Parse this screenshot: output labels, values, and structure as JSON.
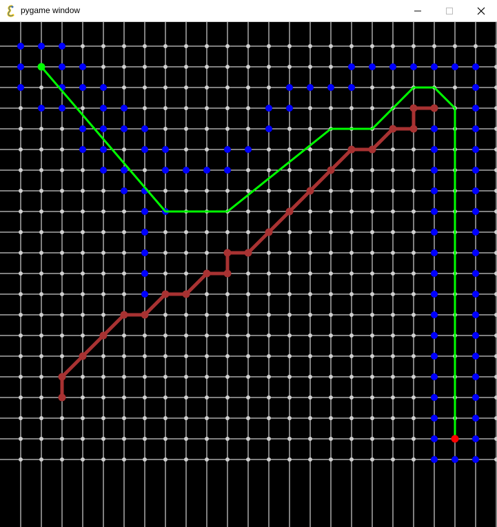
{
  "window": {
    "title": "pygame window",
    "icon": "pygame-snake-icon",
    "controls": [
      "minimize-icon",
      "maximize-icon",
      "close-icon"
    ]
  },
  "game": {
    "grid_cols": 24,
    "grid_rows": 21,
    "colors": {
      "background": "#000000",
      "grid_line": "#ffffff",
      "node": "#d0d0d0",
      "visited": "#0000ff",
      "open": "#000000",
      "path_alt": "#a83232",
      "path_best": "#00ff00",
      "start": "#00ff00",
      "end": "#ff0000"
    },
    "start_node": [
      1,
      1
    ],
    "end_node": [
      21,
      19
    ],
    "visited_nodes": [
      [
        0,
        0
      ],
      [
        1,
        0
      ],
      [
        2,
        0
      ],
      [
        0,
        1
      ],
      [
        2,
        1
      ],
      [
        3,
        1
      ],
      [
        16,
        1
      ],
      [
        17,
        1
      ],
      [
        18,
        1
      ],
      [
        19,
        1
      ],
      [
        20,
        1
      ],
      [
        21,
        1
      ],
      [
        22,
        1
      ],
      [
        0,
        2
      ],
      [
        2,
        2
      ],
      [
        3,
        2
      ],
      [
        4,
        2
      ],
      [
        13,
        2
      ],
      [
        14,
        2
      ],
      [
        15,
        2
      ],
      [
        16,
        2
      ],
      [
        22,
        2
      ],
      [
        1,
        3
      ],
      [
        2,
        3
      ],
      [
        4,
        3
      ],
      [
        5,
        3
      ],
      [
        12,
        3
      ],
      [
        13,
        3
      ],
      [
        22,
        3
      ],
      [
        3,
        4
      ],
      [
        4,
        4
      ],
      [
        5,
        4
      ],
      [
        6,
        4
      ],
      [
        12,
        4
      ],
      [
        20,
        4
      ],
      [
        22,
        4
      ],
      [
        3,
        5
      ],
      [
        4,
        5
      ],
      [
        6,
        5
      ],
      [
        7,
        5
      ],
      [
        10,
        5
      ],
      [
        11,
        5
      ],
      [
        20,
        5
      ],
      [
        22,
        5
      ],
      [
        4,
        6
      ],
      [
        5,
        6
      ],
      [
        7,
        6
      ],
      [
        8,
        6
      ],
      [
        9,
        6
      ],
      [
        10,
        6
      ],
      [
        20,
        6
      ],
      [
        22,
        6
      ],
      [
        5,
        7
      ],
      [
        6,
        7
      ],
      [
        20,
        7
      ],
      [
        22,
        7
      ],
      [
        6,
        8
      ],
      [
        7,
        8
      ],
      [
        20,
        8
      ],
      [
        22,
        8
      ],
      [
        6,
        9
      ],
      [
        20,
        9
      ],
      [
        22,
        9
      ],
      [
        6,
        10
      ],
      [
        20,
        10
      ],
      [
        22,
        10
      ],
      [
        6,
        11
      ],
      [
        20,
        11
      ],
      [
        22,
        11
      ],
      [
        6,
        12
      ],
      [
        20,
        12
      ],
      [
        22,
        12
      ],
      [
        20,
        13
      ],
      [
        22,
        13
      ],
      [
        20,
        14
      ],
      [
        22,
        14
      ],
      [
        20,
        15
      ],
      [
        22,
        15
      ],
      [
        20,
        16
      ],
      [
        22,
        16
      ],
      [
        20,
        17
      ],
      [
        22,
        17
      ],
      [
        20,
        18
      ],
      [
        22,
        18
      ],
      [
        20,
        19
      ],
      [
        22,
        19
      ],
      [
        20,
        20
      ],
      [
        21,
        20
      ],
      [
        22,
        20
      ]
    ],
    "path_alt": [
      [
        20,
        3
      ],
      [
        19,
        3
      ],
      [
        19,
        4
      ],
      [
        18,
        4
      ],
      [
        17,
        5
      ],
      [
        16,
        5
      ],
      [
        15,
        6
      ],
      [
        14,
        7
      ],
      [
        13,
        8
      ],
      [
        12,
        9
      ],
      [
        11,
        10
      ],
      [
        10,
        10
      ],
      [
        10,
        11
      ],
      [
        9,
        11
      ],
      [
        8,
        12
      ],
      [
        7,
        12
      ],
      [
        6,
        13
      ],
      [
        5,
        13
      ],
      [
        4,
        14
      ],
      [
        3,
        15
      ],
      [
        2,
        16
      ],
      [
        2,
        17
      ]
    ],
    "path_best": [
      [
        1,
        1
      ],
      [
        7,
        8
      ],
      [
        10,
        8
      ],
      [
        15,
        4
      ],
      [
        17,
        4
      ],
      [
        19,
        2
      ],
      [
        20,
        2
      ],
      [
        21,
        3
      ],
      [
        21,
        19
      ]
    ]
  }
}
